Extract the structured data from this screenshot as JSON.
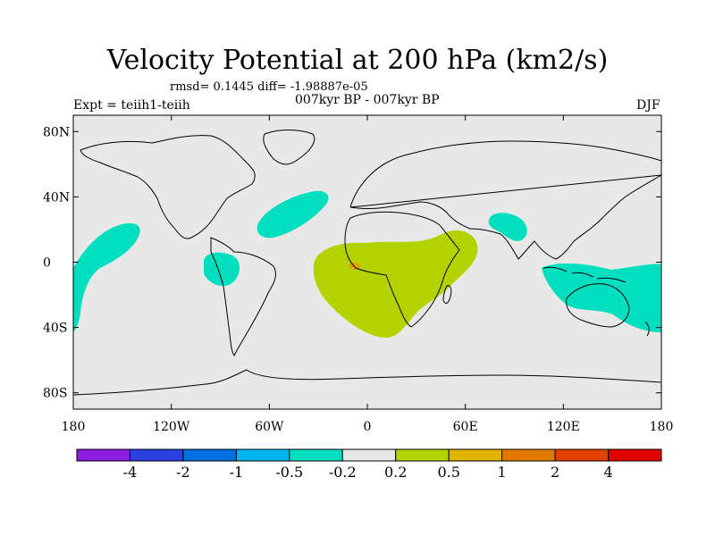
{
  "title": "Velocity Potential at 200 hPa (km2/s)",
  "stats": "rmsd= 0.1445 diff= -1.98887e-05",
  "experiment": "Expt = teiih1-teiih",
  "period": "007kyr BP - 007kyr BP",
  "season": "DJF",
  "map": {
    "background": "#e8e8e8",
    "lat_ticks": [
      {
        "label": "80N",
        "lat": 80
      },
      {
        "label": "40N",
        "lat": 40
      },
      {
        "label": "0",
        "lat": 0
      },
      {
        "label": "40S",
        "lat": -40
      },
      {
        "label": "80S",
        "lat": -80
      }
    ],
    "lon_ticks": [
      {
        "label": "180",
        "lon": -180
      },
      {
        "label": "120W",
        "lon": -120
      },
      {
        "label": "60W",
        "lon": -60
      },
      {
        "label": "0",
        "lon": 0
      },
      {
        "label": "60E",
        "lon": 60
      },
      {
        "label": "120E",
        "lon": 120
      },
      {
        "label": "180",
        "lon": 180
      }
    ],
    "regions": [
      {
        "name": "negative-anomaly-north-atlantic",
        "level": "-0.5 to -0.2",
        "color": "#00e0c0"
      },
      {
        "name": "negative-anomaly-east-pacific",
        "level": "-0.5 to -0.2",
        "color": "#00e0c0"
      },
      {
        "name": "negative-anomaly-tropical-east-pacific",
        "level": "-0.5 to -0.2",
        "color": "#00e0c0"
      },
      {
        "name": "negative-anomaly-arabian-sea",
        "level": "-0.5 to -0.2",
        "color": "#00e0c0"
      },
      {
        "name": "negative-anomaly-maritime-continent",
        "level": "-0.5 to -0.2",
        "color": "#00e0c0"
      },
      {
        "name": "positive-anomaly-africa-atlantic",
        "level": "0.2 to 0.5",
        "color": "#b4d200"
      },
      {
        "name": "positive-anomaly-gulf-of-guinea",
        "level": "0.5 to 1",
        "color": "#e0a000"
      }
    ]
  },
  "colorbar": {
    "colors": [
      "#8a1de0",
      "#2a40e0",
      "#0070e0",
      "#00b4f0",
      "#00e0c0",
      "#e8e8e8",
      "#b4d200",
      "#e0b400",
      "#e07a00",
      "#e04000",
      "#e00000"
    ],
    "labels": [
      "-4",
      "-2",
      "-1",
      "-0.5",
      "-0.2",
      "0.2",
      "0.5",
      "1",
      "2",
      "4"
    ]
  }
}
